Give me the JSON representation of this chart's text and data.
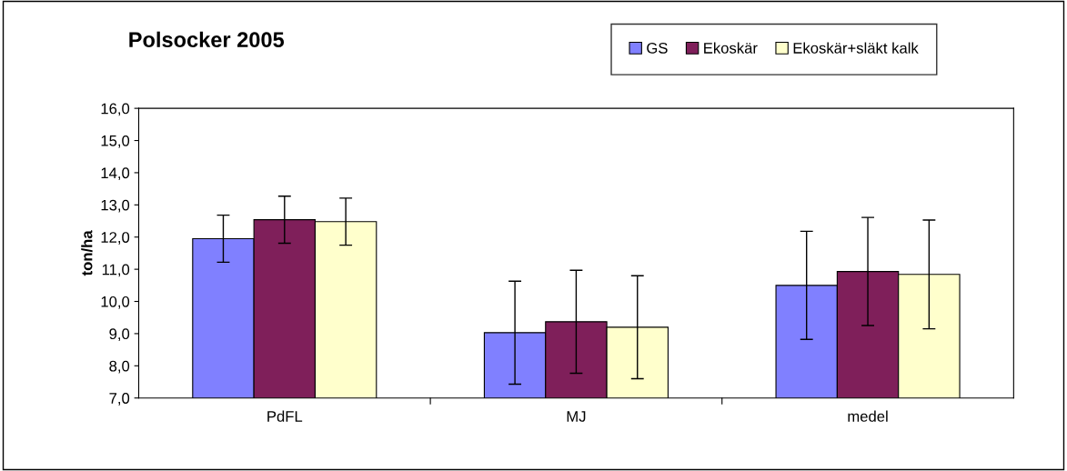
{
  "chart_data": {
    "type": "bar",
    "title": "Polsocker 2005",
    "ylabel": "ton/ha",
    "categories": [
      "PdFL",
      "MJ",
      "medel"
    ],
    "series": [
      {
        "name": "GS",
        "color": "#8080ff",
        "values": [
          11.95,
          9.03,
          10.5
        ],
        "errors": [
          0.73,
          1.6,
          1.68
        ]
      },
      {
        "name": "Ekoskär",
        "color": "#7f1f5a",
        "values": [
          12.54,
          9.37,
          10.93
        ],
        "errors": [
          0.73,
          1.6,
          1.68
        ]
      },
      {
        "name": "Ekoskär+släkt kalk",
        "color": "#ffffcc",
        "values": [
          12.48,
          9.2,
          10.84
        ],
        "errors": [
          0.73,
          1.6,
          1.69
        ]
      }
    ],
    "ylim": [
      7,
      16
    ],
    "yticks": [
      {
        "value": 7,
        "label": "7,0"
      },
      {
        "value": 8,
        "label": "8,0"
      },
      {
        "value": 9,
        "label": "9,0"
      },
      {
        "value": 10,
        "label": "10,0"
      },
      {
        "value": 11,
        "label": "11,0"
      },
      {
        "value": 12,
        "label": "12,0"
      },
      {
        "value": 13,
        "label": "13,0"
      },
      {
        "value": 14,
        "label": "14,0"
      },
      {
        "value": 15,
        "label": "15,0"
      },
      {
        "value": 16,
        "label": "16,0"
      }
    ],
    "grid": false,
    "legend": "top right"
  }
}
